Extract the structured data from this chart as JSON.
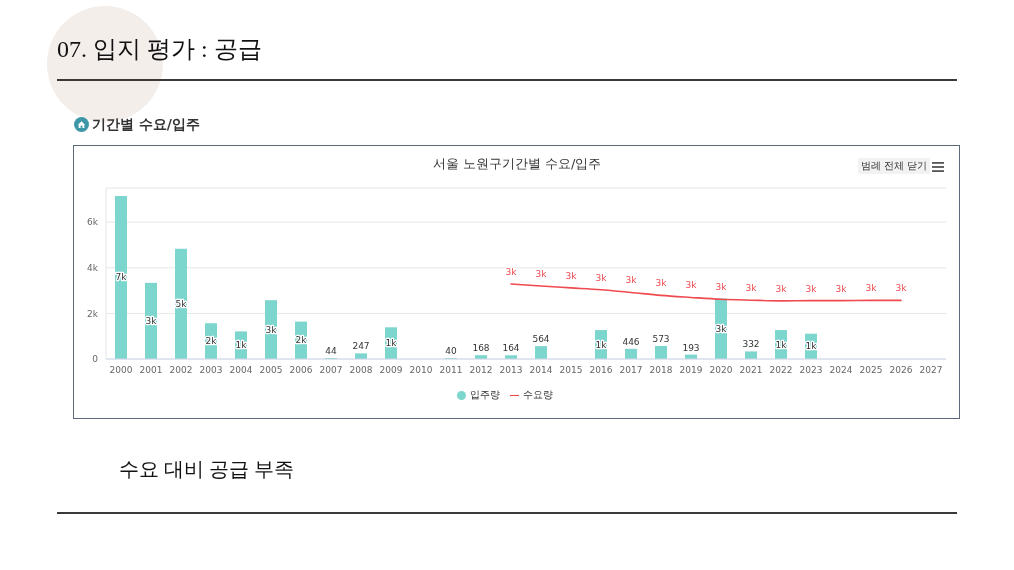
{
  "chart_data": {
    "type": "bar",
    "title": "서울 노원구기간별 수요/입주",
    "annotations": [
      "07. 입지 평가 : 공급",
      "기간별 수요/입주",
      "범례 전체 닫기",
      "수요 대비 공급 부족"
    ],
    "categories": [
      "2000",
      "2001",
      "2002",
      "2003",
      "2004",
      "2005",
      "2006",
      "2007",
      "2008",
      "2009",
      "2010",
      "2011",
      "2012",
      "2013",
      "2014",
      "2015",
      "2016",
      "2017",
      "2018",
      "2019",
      "2020",
      "2021",
      "2022",
      "2023",
      "2024",
      "2025",
      "2026",
      "2027"
    ],
    "series": [
      {
        "name": "입주량",
        "color": "#7dd6cd",
        "values": [
          7150,
          3340,
          4840,
          1570,
          1210,
          2580,
          1640,
          44,
          247,
          1390,
          null,
          40,
          168,
          164,
          564,
          null,
          1270,
          446,
          573,
          193,
          2650,
          332,
          1270,
          1110,
          null,
          null,
          null,
          null
        ],
        "value_labels": [
          "7k",
          "3k",
          "5k",
          "2k",
          "1k",
          "3k",
          "2k",
          "44",
          "247",
          "1k",
          null,
          "40",
          "168",
          "164",
          "564",
          null,
          "1k",
          "446",
          "573",
          "193",
          "3k",
          "332",
          "1k",
          "1k",
          null,
          null,
          null,
          null
        ]
      },
      {
        "name": "수요량",
        "type": "line",
        "color": "#ef4a50",
        "values": [
          null,
          null,
          null,
          null,
          null,
          null,
          null,
          null,
          null,
          null,
          null,
          null,
          null,
          3290,
          3200,
          3120,
          3040,
          2920,
          2790,
          2700,
          2620,
          2580,
          2550,
          2560,
          2560,
          2570,
          2570,
          null
        ],
        "value_labels": [
          null,
          null,
          null,
          null,
          null,
          null,
          null,
          null,
          null,
          null,
          null,
          null,
          null,
          "3k",
          "3k",
          "3k",
          "3k",
          "3k",
          "3k",
          "3k",
          "3k",
          "3k",
          "3k",
          "3k",
          "3k",
          "3k",
          "3k",
          null
        ]
      }
    ],
    "ylim": [
      0,
      7500
    ],
    "yticks": [
      0,
      {
        "value": 2000,
        "label": "2k"
      },
      {
        "value": 4000,
        "label": "4k"
      },
      {
        "value": 6000,
        "label": "6k"
      }
    ],
    "grid": "y",
    "legend": "bottom",
    "marker": "none"
  }
}
